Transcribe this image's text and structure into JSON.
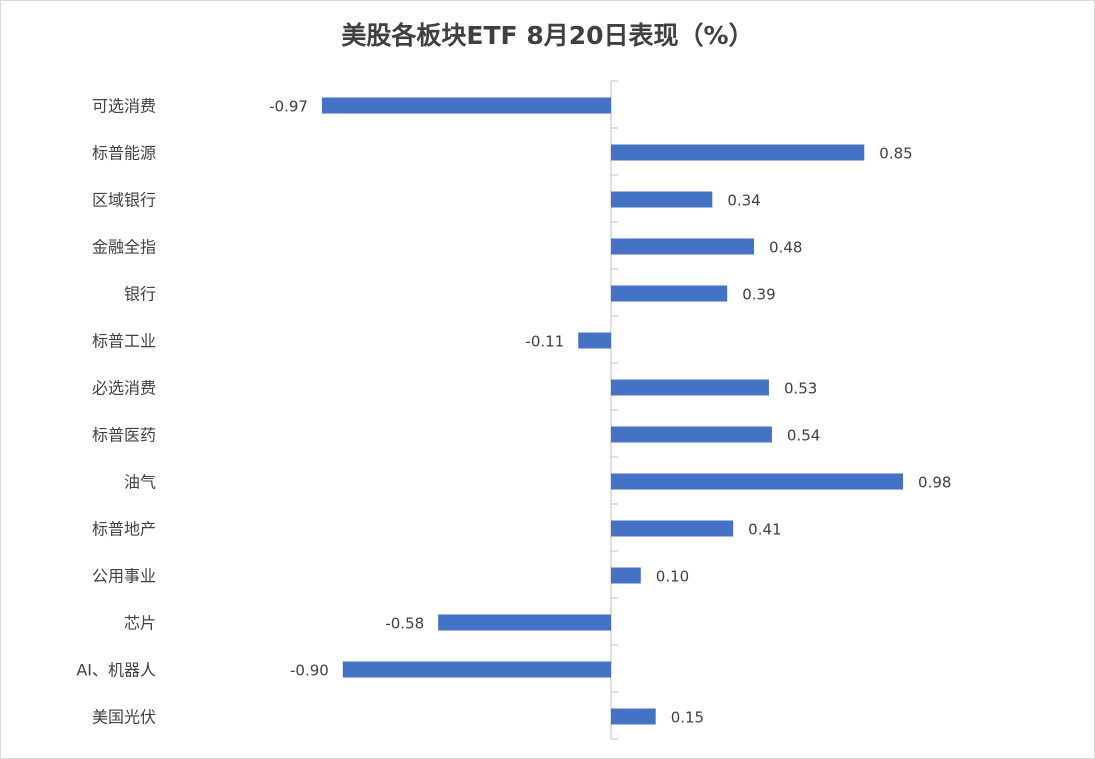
{
  "chart_data": {
    "type": "bar",
    "orientation": "horizontal",
    "title": "美股各板块ETF  8月20日表现（%）",
    "categories": [
      "可选消费",
      "标普能源",
      "区域银行",
      "金融全指",
      "银行",
      "标普工业",
      "必选消费",
      "标普医药",
      "油气",
      "标普地产",
      "公用事业",
      "芯片",
      "AI、机器人",
      "美国光伏"
    ],
    "values": [
      -0.97,
      0.85,
      0.34,
      0.48,
      0.39,
      -0.11,
      0.53,
      0.54,
      0.98,
      0.41,
      0.1,
      -0.58,
      -0.9,
      0.15
    ],
    "value_labels": [
      "-0.97",
      "0.85",
      "0.34",
      "0.48",
      "0.39",
      "-0.11",
      "0.53",
      "0.54",
      "0.98",
      "0.41",
      "0.10",
      "-0.58",
      "-0.90",
      "0.15"
    ],
    "xlabel": "",
    "ylabel": "",
    "xlim": [
      -1.0,
      1.0
    ],
    "grid": false,
    "legend": "none",
    "bar_color": "#4472C4",
    "axis_color": "#bfbfbf",
    "text_color": "#404040"
  }
}
